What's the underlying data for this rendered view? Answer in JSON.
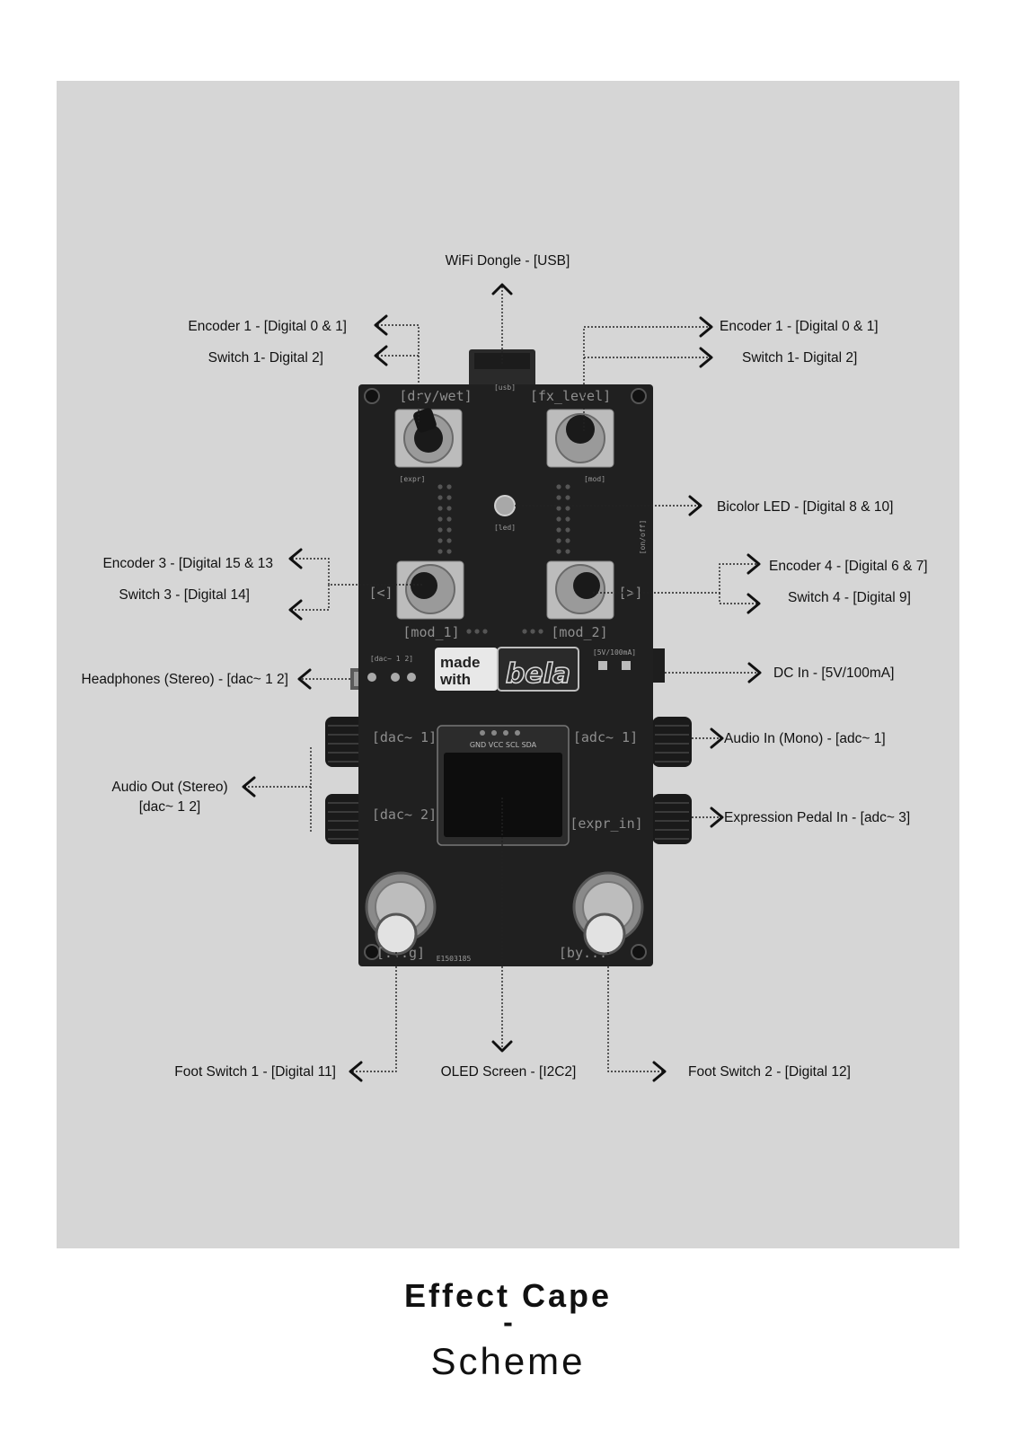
{
  "labels": {
    "wifi": "WiFi Dongle - [USB]",
    "enc1_left": "Encoder 1 - [Digital 0 & 1]",
    "sw1_left": "Switch 1- Digital 2]",
    "enc1_right": "Encoder 1 - [Digital 0 & 1]",
    "sw1_right": "Switch 1- Digital 2]",
    "led": "Bicolor LED - [Digital 8 & 10]",
    "enc3": "Encoder 3 - [Digital 15 & 13",
    "sw3": "Switch 3 - [Digital 14]",
    "enc4": "Encoder 4 - [Digital 6 & 7]",
    "sw4": "Switch 4 - [Digital 9]",
    "headphones": "Headphones (Stereo) - [dac~ 1 2]",
    "dc_in": "DC In - [5V/100mA]",
    "audio_in": "Audio In (Mono) - [adc~ 1]",
    "audio_out_1": "Audio Out (Stereo)",
    "audio_out_2": "[dac~ 1 2]",
    "expr_in": "Expression Pedal In - [adc~ 3]",
    "foot1": "Foot Switch 1 - [Digital 11]",
    "oled": "OLED Screen - [I2C2]",
    "foot2": "Foot Switch 2 - [Digital 12]"
  },
  "silkscreen": {
    "dry_wet": "[dry/wet]",
    "fx_level": "[fx_level]",
    "usb": "[usb]",
    "expr": "[expr]",
    "mod": "[mod]",
    "led": "[led]",
    "on_off": "[on/off]",
    "prev": "[<]",
    "next": "[>]",
    "mod_1": "[mod_1]",
    "mod_2": "[mod_2]",
    "dac_12": "[dac~ 1 2]",
    "power": "[5V/100mA]",
    "made": "made",
    "with": "with",
    "bela": "bela",
    "dac1": "[dac~ 1]",
    "dac2": "[dac~ 2]",
    "adc1": "[adc~ 1]",
    "expr_in": "[expr_in]",
    "oled_pins": "GND VCC SCL SDA",
    "foot_left": "[...g]",
    "foot_right": "[by...",
    "serial": "E1503185"
  },
  "title": {
    "line1": "Effect Cape",
    "line2": "-",
    "line3": "Scheme"
  }
}
